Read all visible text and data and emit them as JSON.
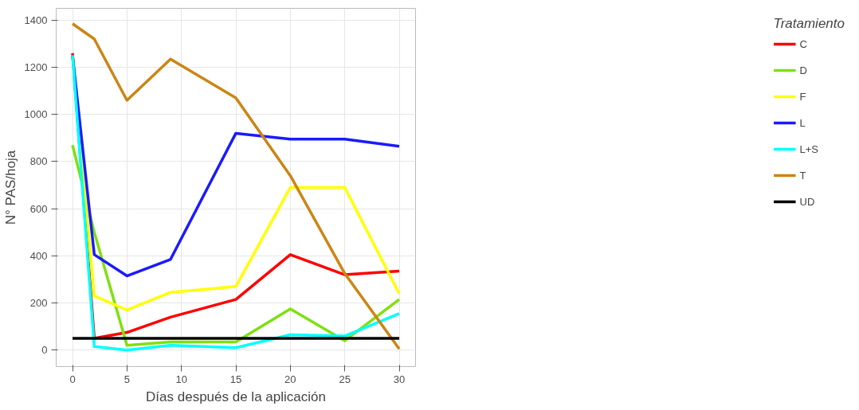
{
  "chart_data": {
    "type": "line",
    "xlabel": "Días después de la aplicación",
    "ylabel": "N° PAS/hoja",
    "legend_title": "Tratamiento",
    "legend": "right",
    "grid": true,
    "line_style": "solid",
    "marker": "none",
    "x": [
      0,
      2,
      5,
      9,
      15,
      20,
      25,
      30
    ],
    "xlim": [
      -1.5,
      31.5
    ],
    "ylim": [
      -70,
      1450
    ],
    "xticks": [
      0,
      5,
      10,
      15,
      20,
      25,
      30
    ],
    "yticks": [
      0,
      200,
      400,
      600,
      800,
      1000,
      1200,
      1400
    ],
    "series": [
      {
        "name": "C",
        "color": "#ff0000",
        "values": [
          1260,
          50,
          75,
          140,
          215,
          405,
          320,
          335
        ]
      },
      {
        "name": "D",
        "color": "#80e010",
        "values": [
          870,
          500,
          20,
          35,
          35,
          175,
          40,
          215
        ]
      },
      {
        "name": "F",
        "color": "#ffff00",
        "values": [
          1250,
          230,
          170,
          245,
          270,
          690,
          690,
          240
        ]
      },
      {
        "name": "L",
        "color": "#1a1aff",
        "values": [
          1250,
          405,
          315,
          385,
          920,
          895,
          895,
          865
        ]
      },
      {
        "name": "L+S",
        "color": "#00ffff",
        "values": [
          1250,
          15,
          0,
          20,
          10,
          65,
          60,
          155
        ]
      },
      {
        "name": "T",
        "color": "#cc8514",
        "values": [
          1385,
          1320,
          1060,
          1235,
          1070,
          740,
          325,
          5
        ]
      },
      {
        "name": "UD",
        "color": "#000000",
        "values": [
          50,
          50,
          50,
          50,
          50,
          50,
          50,
          50
        ]
      }
    ]
  }
}
